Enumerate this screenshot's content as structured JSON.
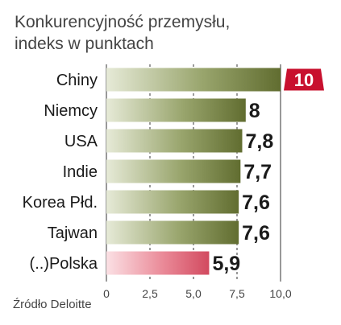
{
  "title_lines": [
    "Konkurencyjność przemysłu,",
    "indeks w punktach"
  ],
  "source": "Źródło Deloitte",
  "colors": {
    "bar_gradient": [
      "#e6ead7",
      "#99a56d",
      "#616d30"
    ],
    "highlight_gradient": [
      "#fbe0e4",
      "#ea8a98",
      "#d24a5f"
    ],
    "label_badge": "#c8102e",
    "grid": "#333333",
    "text": "#1a1a1a"
  },
  "chart_data": {
    "type": "bar",
    "orientation": "horizontal",
    "title": "Konkurencyjność przemysłu, indeks w punktach",
    "categories": [
      "Chiny",
      "Niemcy",
      "USA",
      "Indie",
      "Korea Płd.",
      "Tajwan",
      "(..)Polska"
    ],
    "values": [
      10,
      8,
      7.8,
      7.7,
      7.6,
      7.6,
      5.9
    ],
    "value_labels": [
      "10",
      "8",
      "7,8",
      "7,7",
      "7,6",
      "7,6",
      "5,9"
    ],
    "highlight_index": 6,
    "badge_index": 0,
    "xlim": [
      0,
      10
    ],
    "xticks": [
      0,
      2.5,
      5.0,
      7.5,
      10.0
    ],
    "xtick_labels": [
      "0",
      "2,5",
      "5,0",
      "7,5",
      "10,0"
    ],
    "grid": "vertical-dashed"
  }
}
